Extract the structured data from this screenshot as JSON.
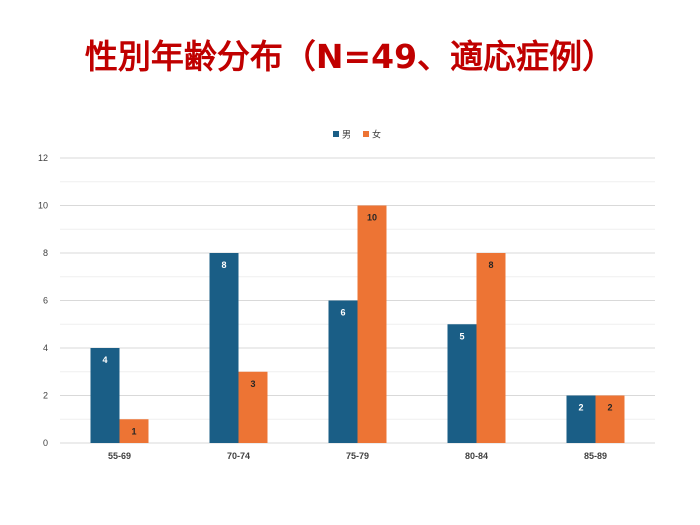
{
  "title": "性別年齢分布（N=49、適応症例）",
  "chart_data": {
    "type": "bar",
    "categories": [
      "55-69",
      "70-74",
      "75-79",
      "80-84",
      "85-89"
    ],
    "series": [
      {
        "name": "男",
        "values": [
          4,
          8,
          6,
          5,
          2
        ],
        "color": "#1a5e86"
      },
      {
        "name": "女",
        "values": [
          1,
          3,
          10,
          8,
          2
        ],
        "color": "#ed7434"
      }
    ],
    "y_ticks": [
      "0",
      "2",
      "4",
      "6",
      "8",
      "10",
      "12"
    ],
    "ylim": [
      0,
      12
    ],
    "grid": true,
    "legend": "top-center",
    "data_labels": true
  }
}
